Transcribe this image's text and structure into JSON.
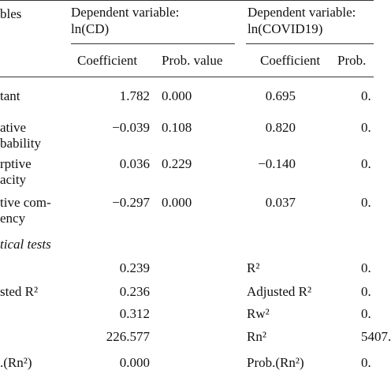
{
  "header": {
    "label": "bles",
    "groups": [
      [
        "Dependent variable:",
        "ln(CD)"
      ],
      [
        "Dependent variable:",
        "ln(COVID19)"
      ]
    ],
    "subheads": [
      "Coefficient",
      "Prob. value",
      "Coefficient",
      "Prob."
    ]
  },
  "rows": [
    {
      "label": [
        "tant"
      ],
      "cells": [
        "1.782",
        "0.000",
        "0.695",
        "0."
      ]
    },
    {
      "label": [
        "ative",
        "bability"
      ],
      "cells": [
        "−0.039",
        "0.108",
        "0.820",
        "0."
      ]
    },
    {
      "label": [
        "rptive",
        "acity"
      ],
      "cells": [
        "0.036",
        "0.229",
        "−0.140",
        "0."
      ]
    },
    {
      "label": [
        "tive com-",
        "ency"
      ],
      "cells": [
        "−0.297",
        "0.000",
        "0.037",
        "0."
      ]
    }
  ],
  "section": "tical tests",
  "stats": [
    {
      "value": "0.239",
      "right_label": "R²",
      "right_value": "0."
    },
    {
      "label": "sted R²",
      "value": "0.236",
      "right_label": "Adjusted R²",
      "right_value": "0."
    },
    {
      "value": "0.312",
      "right_label": "Rw²",
      "right_value": "0."
    },
    {
      "value": "226.577",
      "right_label": "Rn²",
      "right_value": "5407."
    },
    {
      "label": ".(Rn²)",
      "value": "0.000",
      "right_label": "Prob.(Rn²)",
      "right_value": "0."
    }
  ]
}
